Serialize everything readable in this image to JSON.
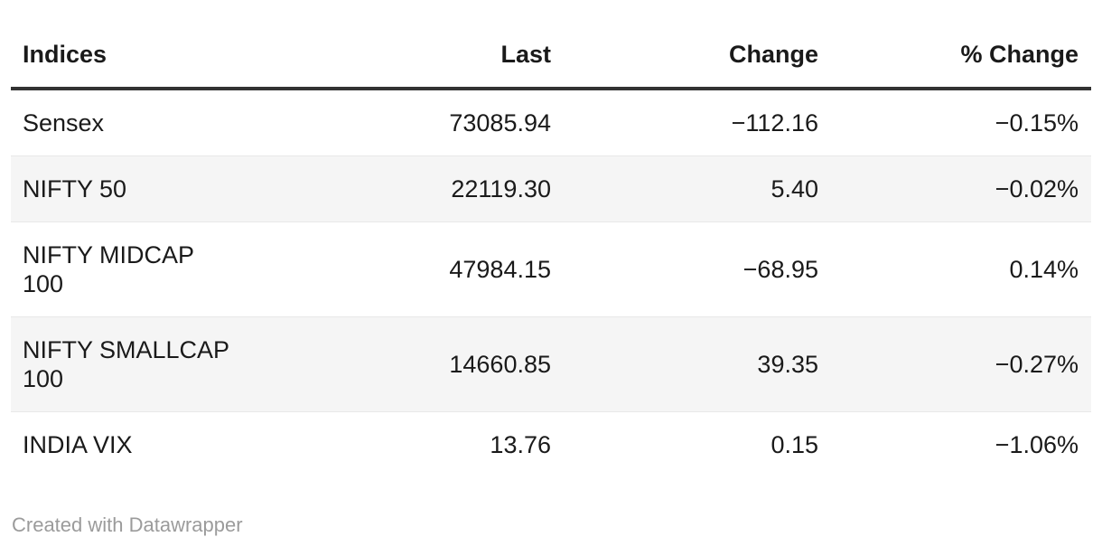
{
  "table": {
    "columns": [
      "Indices",
      "Last",
      "Change",
      "% Change"
    ],
    "rows": [
      {
        "label": "Sensex",
        "last": "73085.94",
        "change": "−112.16",
        "pct": "−0.15%"
      },
      {
        "label": "NIFTY 50",
        "last": "22119.30",
        "change": "5.40",
        "pct": "−0.02%"
      },
      {
        "label": "NIFTY MIDCAP 100",
        "last": "47984.15",
        "change": "−68.95",
        "pct": "0.14%"
      },
      {
        "label": "NIFTY SMALLCAP 100",
        "last": "14660.85",
        "change": "39.35",
        "pct": "−0.27%"
      },
      {
        "label": "INDIA VIX",
        "last": "13.76",
        "change": "0.15",
        "pct": "−1.06%"
      }
    ]
  },
  "footer": {
    "attribution": "Created with Datawrapper"
  },
  "colors": {
    "text": "#1a1a1a",
    "header_rule": "#333333",
    "row_stripe": "#f5f5f5",
    "row_divider": "#e8e8e8",
    "attribution_text": "#9b9b9b",
    "background": "#ffffff"
  },
  "chart_data": {
    "type": "table",
    "title": "",
    "columns": [
      "Indices",
      "Last",
      "Change",
      "% Change"
    ],
    "rows": [
      [
        "Sensex",
        73085.94,
        -112.16,
        -0.15
      ],
      [
        "NIFTY 50",
        22119.3,
        5.4,
        -0.02
      ],
      [
        "NIFTY MIDCAP 100",
        47984.15,
        -68.95,
        0.14
      ],
      [
        "NIFTY SMALLCAP 100",
        14660.85,
        39.35,
        -0.27
      ],
      [
        "INDIA VIX",
        13.76,
        0.15,
        -1.06
      ]
    ],
    "layout_hints": {
      "striped_rows": [
        1,
        3
      ],
      "numeric_columns_right_aligned": true,
      "header_rule": "thick-dark",
      "attribution": "Created with Datawrapper"
    }
  }
}
